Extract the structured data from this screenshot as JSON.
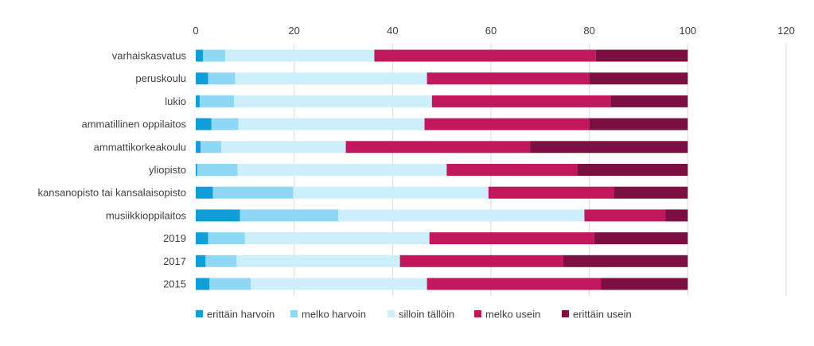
{
  "chart_data": {
    "type": "bar",
    "orientation": "horizontal",
    "stacked": true,
    "title": "",
    "xlabel": "",
    "ylabel": "",
    "xlim": [
      0,
      120
    ],
    "x_ticks": [
      0,
      20,
      40,
      60,
      80,
      100,
      120
    ],
    "grid": "vertical",
    "legend_position": "bottom",
    "categories": [
      "varhaiskasvatus",
      "peruskoulu",
      "lukio",
      "ammatillinen oppilaitos",
      "ammattikorkeakoulu",
      "yliopisto",
      "kansanopisto tai kansalaisopisto",
      "musiikkioppilaitos",
      "2019",
      "2017",
      "2015"
    ],
    "series": [
      {
        "name": "erittäin harvoin",
        "color": "#0f9ed5",
        "values": [
          1.5,
          2.5,
          0.8,
          3.2,
          1.0,
          0.3,
          3.5,
          9.0,
          2.5,
          2.0,
          2.8
        ]
      },
      {
        "name": "melko harvoin",
        "color": "#8fd8f5",
        "values": [
          4.5,
          5.5,
          7.0,
          5.5,
          4.2,
          8.2,
          16.3,
          20.0,
          7.5,
          6.3,
          8.4
        ]
      },
      {
        "name": "silloin tällöin",
        "color": "#cdeefb",
        "values": [
          30.3,
          39.0,
          40.2,
          37.8,
          25.3,
          42.5,
          39.7,
          50.0,
          37.5,
          33.2,
          35.8
        ]
      },
      {
        "name": "melko usein",
        "color": "#c0175d",
        "values": [
          45.0,
          33.0,
          36.3,
          33.5,
          37.5,
          26.5,
          25.5,
          16.5,
          33.5,
          33.2,
          35.4
        ]
      },
      {
        "name": "erittäin usein",
        "color": "#7c1042",
        "values": [
          18.7,
          20.0,
          15.7,
          20.0,
          32.0,
          22.5,
          15.0,
          4.5,
          19.0,
          25.3,
          17.6
        ]
      }
    ]
  }
}
